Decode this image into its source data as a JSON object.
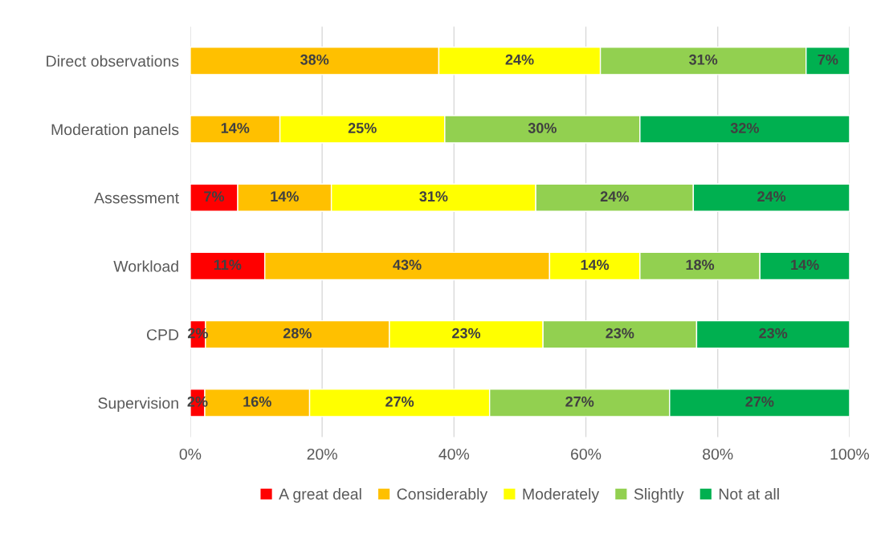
{
  "chart_data": {
    "type": "bar",
    "orientation": "horizontal",
    "stacked": true,
    "categories": [
      "Direct observations",
      "Moderation panels",
      "Assessment",
      "Workload",
      "CPD",
      "Supervision"
    ],
    "series": [
      {
        "name": "A great deal",
        "color": "#ff0000",
        "values": [
          null,
          null,
          7.2,
          11.3,
          2.3,
          2.2
        ],
        "value_labels": [
          null,
          null,
          "7%",
          "11%",
          "2%",
          "2%"
        ]
      },
      {
        "name": "Considerably",
        "color": "#ffc000",
        "values": [
          37.7,
          13.6,
          14.2,
          43.2,
          27.9,
          15.9
        ],
        "value_labels": [
          "38%",
          "14%",
          "14%",
          "43%",
          "28%",
          "16%"
        ]
      },
      {
        "name": "Moderately",
        "color": "#ffff00",
        "values": [
          24.5,
          25.0,
          31.0,
          13.7,
          23.3,
          27.3
        ],
        "value_labels": [
          "24%",
          "25%",
          "31%",
          "14%",
          "23%",
          "27%"
        ]
      },
      {
        "name": "Slightly",
        "color": "#92d050",
        "values": [
          31.2,
          29.6,
          23.9,
          18.2,
          23.3,
          27.3
        ],
        "value_labels": [
          "31%",
          "30%",
          "24%",
          "18%",
          "23%",
          "27%"
        ]
      },
      {
        "name": "Not at all",
        "color": "#00b050",
        "values": [
          6.6,
          31.8,
          23.7,
          13.6,
          23.2,
          27.3
        ],
        "value_labels": [
          "7%",
          "32%",
          "24%",
          "14%",
          "23%",
          "27%"
        ]
      }
    ],
    "xlim": [
      0,
      100
    ],
    "xticks": [
      {
        "value": 0,
        "label": "0%"
      },
      {
        "value": 20,
        "label": "20%"
      },
      {
        "value": 40,
        "label": "40%"
      },
      {
        "value": 60,
        "label": "60%"
      },
      {
        "value": 80,
        "label": "80%"
      },
      {
        "value": 100,
        "label": "100%"
      }
    ],
    "grid": "x",
    "legend": "bottom"
  }
}
